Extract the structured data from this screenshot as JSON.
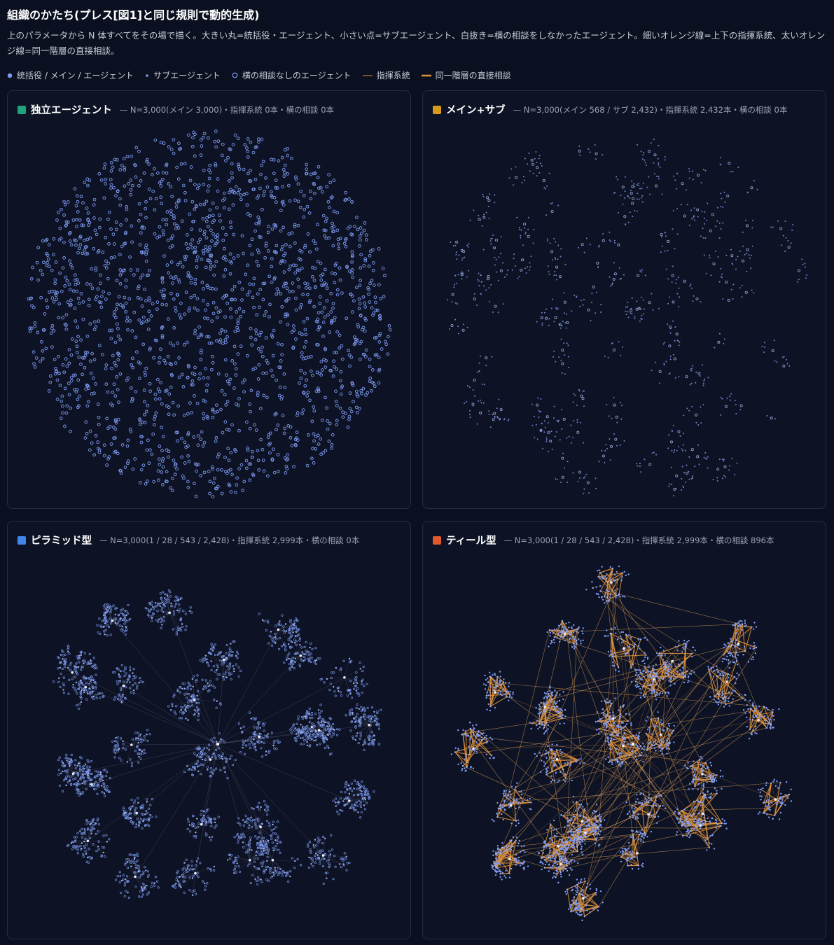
{
  "header": {
    "title": "組織のかたち(プレス[図1]と同じ規則で動的生成)",
    "description": "上のパラメータから N 体すべてをその場で描く。大きい丸=統括役・エージェント、小さい点=サブエージェント、白抜き=横の相談をしなかったエージェント。細いオレンジ線=上下の指揮系統、太いオレンジ線=同一階層の直接相談。"
  },
  "legend": [
    "統括役 / メイン / エージェント",
    "サブエージェント",
    "横の相談なしのエージェント",
    "指揮系統",
    "同一階層の直接相談"
  ],
  "panels": [
    {
      "title": "独立エージェント",
      "subtitle": "— N=3,000(メイン 3,000)・指揮系統 0本・横の相談 0本"
    },
    {
      "title": "メイン+サブ",
      "subtitle": "— N=3,000(メイン 568 / サブ 2,432)・指揮系統 2,432本・横の相談 0本"
    },
    {
      "title": "ピラミッド型",
      "subtitle": "— N=3,000(1 / 28 / 543 / 2,428)・指揮系統 2,999本・横の相談 0本"
    },
    {
      "title": "ティール型",
      "subtitle": "— N=3,000(1 / 28 / 543 / 2,428)・指揮系統 2,999本・横の相談 896本"
    }
  ]
}
